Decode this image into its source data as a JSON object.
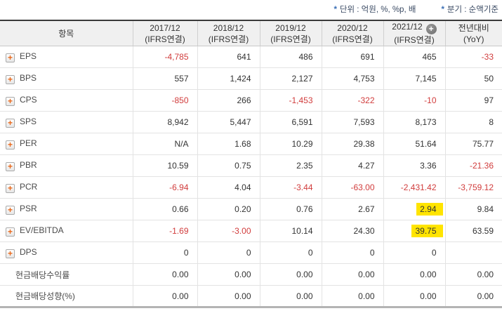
{
  "notes": [
    {
      "star": "*",
      "text": "단위 : 억원, %, %p, 배"
    },
    {
      "star": "*",
      "text": "분기 : 순액기준"
    }
  ],
  "colors": {
    "negative_value": "#d13c3c",
    "highlight": "#ffe400",
    "header_bg": "#f0f0f0",
    "expand_plus": "#e8681b",
    "add_column_circle": "#787878",
    "note_text": "#3a4a63"
  },
  "icons": {
    "expand_row": "plus-square-icon",
    "add_column": "plus-circle-icon"
  },
  "table": {
    "item_header": "항목",
    "columns": [
      {
        "line1": "2017/12",
        "line2": "(IFRS연결)",
        "plus_icon": false
      },
      {
        "line1": "2018/12",
        "line2": "(IFRS연결)",
        "plus_icon": false
      },
      {
        "line1": "2019/12",
        "line2": "(IFRS연결)",
        "plus_icon": false
      },
      {
        "line1": "2020/12",
        "line2": "(IFRS연결)",
        "plus_icon": false
      },
      {
        "line1": "2021/12",
        "line2": "(IFRS연결)",
        "plus_icon": true
      },
      {
        "line1": "전년대비",
        "line2": "(YoY)",
        "plus_icon": false
      }
    ],
    "rows": [
      {
        "label": "EPS",
        "expandable": true,
        "cells": [
          "-4,785",
          "641",
          "486",
          "691",
          "465",
          "-33"
        ]
      },
      {
        "label": "BPS",
        "expandable": true,
        "cells": [
          "557",
          "1,424",
          "2,127",
          "4,753",
          "7,145",
          "50"
        ]
      },
      {
        "label": "CPS",
        "expandable": true,
        "cells": [
          "-850",
          "266",
          "-1,453",
          "-322",
          "-10",
          "97"
        ]
      },
      {
        "label": "SPS",
        "expandable": true,
        "cells": [
          "8,942",
          "5,447",
          "6,591",
          "7,593",
          "8,173",
          "8"
        ]
      },
      {
        "label": "PER",
        "expandable": true,
        "cells": [
          "N/A",
          "1.68",
          "10.29",
          "29.38",
          "51.64",
          "75.77"
        ]
      },
      {
        "label": "PBR",
        "expandable": true,
        "cells": [
          "10.59",
          "0.75",
          "2.35",
          "4.27",
          "3.36",
          "-21.36"
        ]
      },
      {
        "label": "PCR",
        "expandable": true,
        "cells": [
          "-6.94",
          "4.04",
          "-3.44",
          "-63.00",
          "-2,431.42",
          "-3,759.12"
        ]
      },
      {
        "label": "PSR",
        "expandable": true,
        "cells": [
          "0.66",
          "0.20",
          "0.76",
          "2.67",
          "2.94",
          "9.84"
        ]
      },
      {
        "label": "EV/EBITDA",
        "expandable": true,
        "cells": [
          "-1.69",
          "-3.00",
          "10.14",
          "24.30",
          "39.75",
          "63.59"
        ]
      },
      {
        "label": "DPS",
        "expandable": true,
        "cells": [
          "0",
          "0",
          "0",
          "0",
          "0",
          ""
        ]
      },
      {
        "label": "현금배당수익률",
        "expandable": false,
        "cells": [
          "0.00",
          "0.00",
          "0.00",
          "0.00",
          "0.00",
          "0.00"
        ]
      },
      {
        "label": "현금배당성향(%)",
        "expandable": false,
        "cells": [
          "0.00",
          "0.00",
          "0.00",
          "0.00",
          "0.00",
          "0.00"
        ]
      }
    ],
    "highlights": [
      {
        "row": 7,
        "col": 4
      },
      {
        "row": 8,
        "col": 4
      }
    ]
  }
}
